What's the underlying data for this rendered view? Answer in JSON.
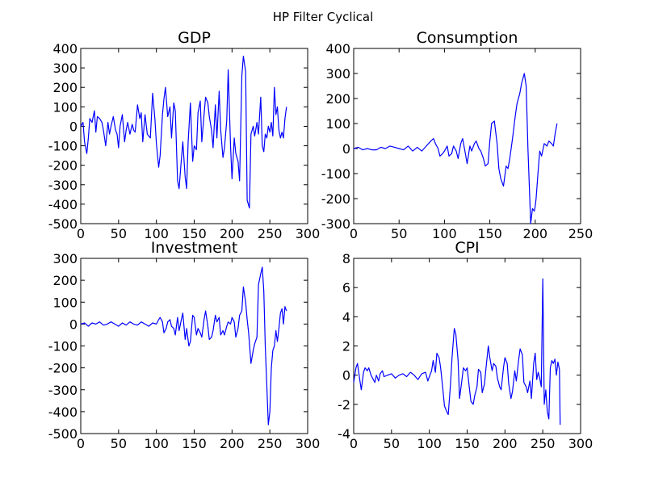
{
  "figure": {
    "suptitle": "HP Filter Cyclical"
  },
  "colors": {
    "series": "#0000ff"
  },
  "chart_data": [
    {
      "type": "line",
      "title": "GDP",
      "xlim": [
        0,
        300
      ],
      "ylim": [
        -500,
        400
      ],
      "xticks": [
        0,
        50,
        100,
        150,
        200,
        250,
        300
      ],
      "yticks": [
        -500,
        -400,
        -300,
        -200,
        -100,
        0,
        100,
        200,
        300,
        400
      ],
      "series": [
        {
          "x": [
            0,
            3,
            5,
            8,
            10,
            12,
            15,
            18,
            20,
            22,
            25,
            28,
            30,
            33,
            36,
            38,
            40,
            43,
            46,
            48,
            50,
            52,
            55,
            58,
            60,
            62,
            65,
            68,
            70,
            72,
            75,
            78,
            80,
            82,
            85,
            88,
            90,
            92,
            95,
            98,
            100,
            103,
            105,
            108,
            110,
            112,
            115,
            118,
            120,
            123,
            125,
            128,
            130,
            133,
            135,
            138,
            140,
            142,
            145,
            148,
            150,
            153,
            155,
            158,
            160,
            163,
            165,
            168,
            170,
            173,
            175,
            178,
            180,
            183,
            185,
            188,
            190,
            193,
            195,
            198,
            200,
            203,
            205,
            208,
            210,
            213,
            215,
            218,
            220,
            223,
            225,
            228,
            230,
            233,
            235,
            238,
            240,
            242,
            244,
            246,
            248,
            250,
            252,
            254,
            256,
            258,
            260,
            262,
            264,
            266,
            268,
            270,
            272
          ],
          "y": [
            0,
            20,
            -80,
            -140,
            -60,
            40,
            20,
            80,
            -30,
            50,
            40,
            20,
            -20,
            -100,
            20,
            -40,
            0,
            50,
            -20,
            -40,
            -110,
            0,
            60,
            -80,
            -20,
            20,
            -40,
            10,
            -20,
            -30,
            110,
            40,
            70,
            -80,
            60,
            -40,
            -50,
            -60,
            170,
            40,
            -90,
            -210,
            -150,
            60,
            140,
            200,
            50,
            100,
            -60,
            120,
            80,
            -280,
            -320,
            -170,
            -80,
            -260,
            -320,
            -80,
            120,
            -180,
            -100,
            -120,
            70,
            130,
            -80,
            60,
            150,
            120,
            50,
            -20,
            -110,
            110,
            -60,
            180,
            -20,
            -160,
            -110,
            30,
            290,
            -100,
            -270,
            -60,
            -140,
            -180,
            -280,
            260,
            360,
            280,
            -380,
            -420,
            -40,
            0,
            -50,
            20,
            -40,
            150,
            -100,
            -130,
            -40,
            -60,
            0,
            -30,
            20,
            -50,
            200,
            60,
            100,
            -20,
            -60,
            -30,
            -60,
            40,
            100
          ]
        }
      ]
    },
    {
      "type": "line",
      "title": "Consumption",
      "xlim": [
        0,
        250
      ],
      "ylim": [
        -300,
        400
      ],
      "xticks": [
        0,
        50,
        100,
        150,
        200,
        250
      ],
      "yticks": [
        -300,
        -200,
        -100,
        0,
        100,
        200,
        300,
        400
      ],
      "series": [
        {
          "x": [
            0,
            5,
            10,
            15,
            20,
            25,
            30,
            35,
            40,
            45,
            50,
            55,
            60,
            65,
            70,
            75,
            80,
            85,
            88,
            90,
            93,
            95,
            98,
            100,
            103,
            105,
            108,
            110,
            113,
            115,
            118,
            120,
            123,
            125,
            128,
            130,
            133,
            135,
            138,
            140,
            143,
            145,
            148,
            150,
            152,
            155,
            158,
            160,
            162,
            165,
            168,
            170,
            172,
            175,
            178,
            180,
            183,
            185,
            188,
            190,
            192,
            195,
            197,
            199,
            200,
            201,
            203,
            205,
            207,
            210,
            213,
            215,
            218,
            220,
            222,
            224
          ],
          "y": [
            0,
            5,
            -5,
            0,
            -5,
            -5,
            5,
            0,
            10,
            5,
            0,
            -5,
            10,
            -10,
            5,
            -10,
            10,
            30,
            40,
            20,
            0,
            -30,
            -20,
            -10,
            10,
            -30,
            -20,
            10,
            -10,
            -40,
            20,
            40,
            -20,
            -60,
            10,
            -10,
            20,
            30,
            0,
            -10,
            -40,
            -70,
            -60,
            30,
            100,
            110,
            20,
            -80,
            -120,
            -150,
            -70,
            -80,
            -40,
            40,
            130,
            180,
            220,
            260,
            300,
            250,
            0,
            -300,
            -240,
            -250,
            -230,
            -200,
            -100,
            -10,
            -30,
            20,
            10,
            30,
            20,
            10,
            60,
            100
          ]
        }
      ]
    },
    {
      "type": "line",
      "title": "Investment",
      "xlim": [
        0,
        300
      ],
      "ylim": [
        -500,
        300
      ],
      "xticks": [
        0,
        50,
        100,
        150,
        200,
        250,
        300
      ],
      "yticks": [
        -500,
        -400,
        -300,
        -200,
        -100,
        0,
        100,
        200,
        300
      ],
      "series": [
        {
          "x": [
            0,
            5,
            10,
            15,
            20,
            25,
            30,
            35,
            40,
            45,
            50,
            55,
            60,
            65,
            70,
            75,
            80,
            85,
            90,
            95,
            100,
            103,
            105,
            108,
            110,
            113,
            115,
            118,
            120,
            123,
            125,
            128,
            130,
            133,
            135,
            138,
            140,
            143,
            145,
            148,
            150,
            153,
            155,
            158,
            160,
            163,
            165,
            168,
            170,
            173,
            175,
            178,
            180,
            183,
            185,
            188,
            190,
            193,
            195,
            198,
            200,
            203,
            205,
            208,
            210,
            213,
            215,
            218,
            220,
            222,
            225,
            228,
            230,
            233,
            235,
            238,
            240,
            242,
            244,
            246,
            248,
            250,
            252,
            254,
            256,
            258,
            260,
            262,
            264,
            266,
            268,
            270,
            272
          ],
          "y": [
            0,
            5,
            -10,
            5,
            0,
            10,
            -5,
            0,
            10,
            0,
            -10,
            5,
            -5,
            10,
            0,
            -5,
            10,
            0,
            -10,
            5,
            0,
            20,
            30,
            10,
            -40,
            -20,
            10,
            20,
            -10,
            -20,
            -50,
            30,
            -30,
            20,
            50,
            -70,
            -20,
            -100,
            -80,
            40,
            30,
            -50,
            -20,
            -40,
            -60,
            20,
            60,
            -10,
            -70,
            -60,
            -30,
            40,
            10,
            30,
            -50,
            -30,
            -50,
            -10,
            10,
            0,
            30,
            10,
            -60,
            -20,
            40,
            60,
            170,
            100,
            20,
            -40,
            -180,
            -120,
            -90,
            -60,
            180,
            230,
            260,
            150,
            -100,
            -280,
            -460,
            -400,
            -200,
            -120,
            -100,
            -30,
            -80,
            -20,
            50,
            70,
            0,
            80,
            60
          ]
        }
      ]
    },
    {
      "type": "line",
      "title": "CPI",
      "xlim": [
        0,
        300
      ],
      "ylim": [
        -4,
        8
      ],
      "xticks": [
        0,
        50,
        100,
        150,
        200,
        250,
        300
      ],
      "yticks": [
        -4,
        -2,
        0,
        2,
        4,
        6,
        8
      ],
      "series": [
        {
          "x": [
            0,
            3,
            5,
            8,
            10,
            13,
            15,
            18,
            20,
            23,
            25,
            28,
            30,
            33,
            35,
            38,
            40,
            45,
            50,
            55,
            60,
            65,
            70,
            75,
            80,
            85,
            90,
            95,
            98,
            100,
            103,
            105,
            108,
            110,
            113,
            115,
            118,
            120,
            123,
            125,
            128,
            130,
            133,
            135,
            138,
            140,
            143,
            145,
            148,
            150,
            153,
            155,
            158,
            160,
            163,
            165,
            168,
            170,
            173,
            175,
            178,
            180,
            183,
            185,
            188,
            190,
            193,
            195,
            198,
            200,
            203,
            205,
            208,
            210,
            213,
            215,
            218,
            220,
            223,
            225,
            228,
            230,
            233,
            235,
            238,
            240,
            242,
            244,
            246,
            248,
            250,
            252,
            254,
            256,
            258,
            260,
            262,
            264,
            266,
            268,
            270,
            272,
            273
          ],
          "y": [
            -0.5,
            0.5,
            0.8,
            -0.3,
            -1.0,
            0.2,
            0.5,
            0.3,
            0.5,
            0,
            -0.2,
            -0.5,
            0,
            -0.4,
            0.1,
            0.3,
            -0.1,
            0,
            0.1,
            -0.2,
            0,
            0.1,
            -0.1,
            0.2,
            0,
            -0.3,
            0.1,
            0.2,
            -0.4,
            -0.1,
            0.3,
            1.0,
            0.2,
            1.5,
            1.2,
            0.5,
            -1.0,
            -2.1,
            -2.5,
            -2.7,
            -0.6,
            1.2,
            3.2,
            2.8,
            1.0,
            -1.6,
            -0.4,
            0.5,
            0.3,
            0.5,
            -0.9,
            -1.8,
            -2.0,
            -1.4,
            -0.8,
            0.4,
            0.2,
            -1.2,
            -0.6,
            0.5,
            2.0,
            1.2,
            0.3,
            0.8,
            0.6,
            -0.2,
            -0.8,
            -1.0,
            0.5,
            1.2,
            0.8,
            -0.6,
            -1.6,
            -1.1,
            0.3,
            -0.4,
            1.0,
            1.8,
            1.4,
            -0.5,
            -0.8,
            -1.2,
            -0.4,
            -1.6,
            0.8,
            1.5,
            -0.3,
            0.2,
            -0.2,
            -0.8,
            6.6,
            -2.0,
            -1.0,
            -2.5,
            -3.0,
            0.5,
            1.0,
            0.8,
            1.1,
            0,
            0.9,
            0.4,
            -3.4
          ]
        }
      ]
    }
  ]
}
